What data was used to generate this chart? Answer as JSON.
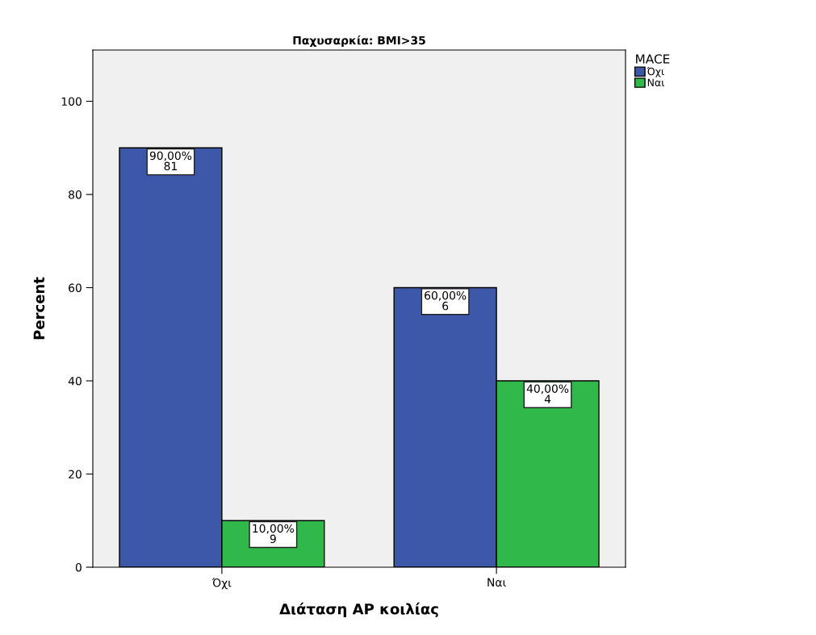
{
  "chart_data": {
    "type": "bar",
    "title": "Παχυσαρκία: BMI>35",
    "xlabel": "Διάταση AP κοιλίας",
    "ylabel": "Percent",
    "legend_title": "MACE",
    "categories": [
      "Όχι",
      "Ναι"
    ],
    "series": [
      {
        "name": "Όχι",
        "color": "#3d58a8",
        "values": [
          90,
          60
        ],
        "value_labels": [
          "90,00%\n81",
          "60,00%\n6"
        ]
      },
      {
        "name": "Ναι",
        "color": "#31b84a",
        "values": [
          10,
          40
        ],
        "value_labels": [
          "10,00%\n9",
          "40,00%\n4"
        ]
      }
    ],
    "ylim": [
      0,
      111
    ],
    "yticks": [
      0,
      20,
      40,
      60,
      80,
      100
    ],
    "grid": false,
    "legend": "top right"
  }
}
